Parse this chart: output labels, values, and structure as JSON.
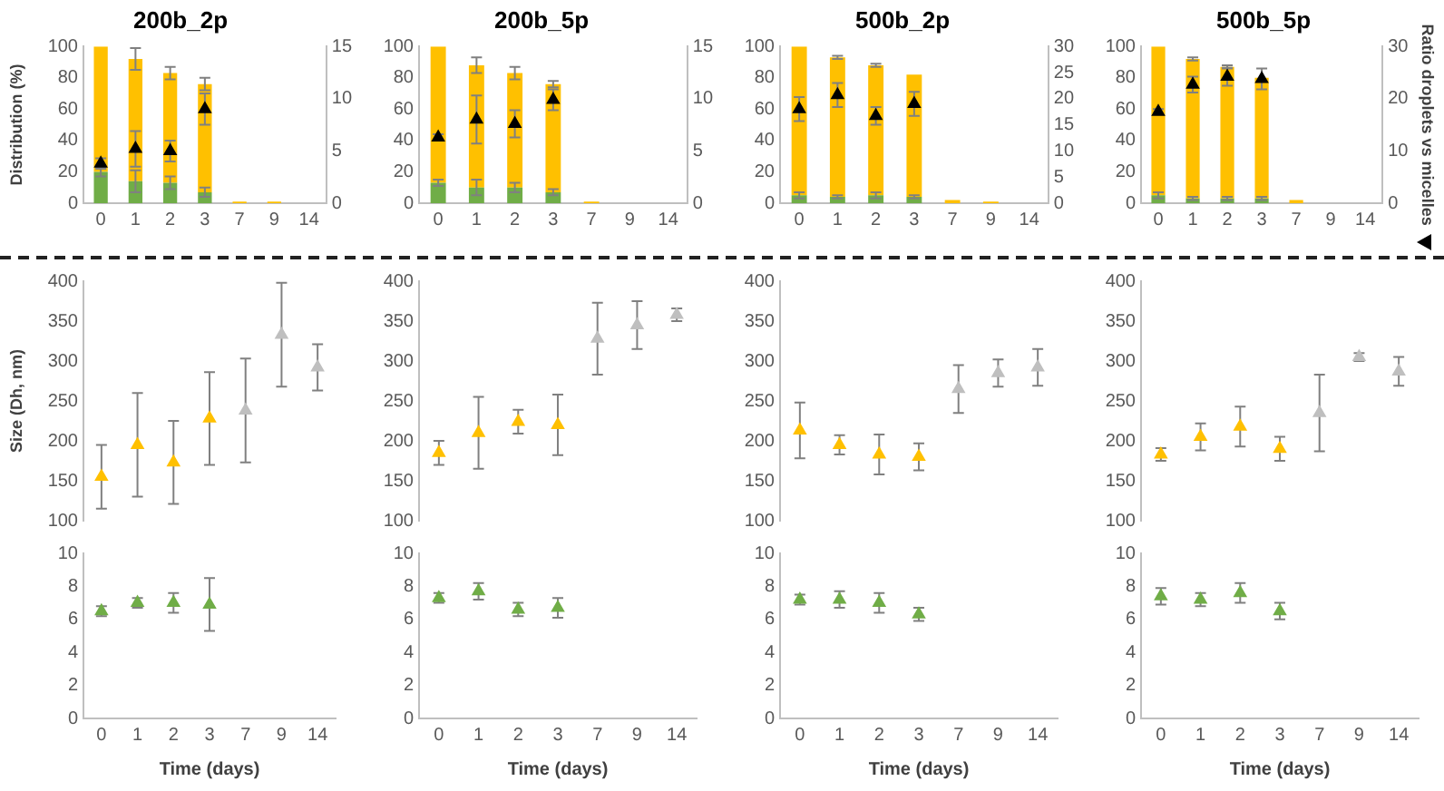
{
  "chart_data": [
    {
      "type": "bar",
      "title": "200b_2p",
      "ylabel": "Distribution (%)",
      "categories": [
        "0",
        "1",
        "2",
        "3",
        "7",
        "9",
        "14"
      ],
      "stacked": true,
      "marker": "triangle",
      "ylim": [
        0,
        100
      ],
      "yticks": [
        0,
        20,
        40,
        60,
        80,
        100
      ],
      "y2lim": [
        0,
        15
      ],
      "y2ticks": [
        0,
        5,
        10,
        15
      ],
      "series": [
        {
          "color": "#70ad47",
          "values": [
            20,
            14,
            13,
            7,
            0,
            0,
            0
          ],
          "errors": [
            3,
            7,
            4,
            3,
            null,
            null,
            null
          ]
        },
        {
          "color": "#ffc000",
          "values": [
            80,
            78,
            70,
            69,
            1,
            1,
            0
          ],
          "errors": [
            null,
            7,
            4,
            4,
            null,
            null,
            null
          ]
        },
        {
          "type": "scatter",
          "axis": "y2",
          "color": "#000000",
          "values": [
            3.8,
            5.2,
            5.0,
            9.0,
            null,
            null,
            null
          ],
          "errors": [
            0.5,
            1.7,
            1.0,
            1.5,
            null,
            null,
            null
          ]
        }
      ]
    },
    {
      "type": "bar",
      "title": "200b_5p",
      "categories": [
        "0",
        "1",
        "2",
        "3",
        "7",
        "9",
        "14"
      ],
      "stacked": true,
      "marker": "triangle",
      "ylim": [
        0,
        100
      ],
      "yticks": [
        0,
        20,
        40,
        60,
        80,
        100
      ],
      "y2lim": [
        0,
        15
      ],
      "y2ticks": [
        0,
        5,
        10,
        15
      ],
      "series": [
        {
          "color": "#70ad47",
          "values": [
            13,
            10,
            10,
            7,
            0,
            0,
            0
          ],
          "errors": [
            2,
            5,
            3,
            2,
            null,
            null,
            null
          ]
        },
        {
          "color": "#ffc000",
          "values": [
            87,
            78,
            73,
            69,
            1,
            0,
            0
          ],
          "errors": [
            null,
            5,
            4,
            2,
            null,
            null,
            null
          ]
        },
        {
          "type": "scatter",
          "axis": "y2",
          "color": "#000000",
          "values": [
            6.3,
            8.0,
            7.6,
            9.9,
            null,
            null,
            null
          ],
          "errors": [
            0.3,
            2.3,
            1.3,
            1.0,
            null,
            null,
            null
          ]
        }
      ]
    },
    {
      "type": "bar",
      "title": "500b_2p",
      "categories": [
        "0",
        "1",
        "2",
        "3",
        "7",
        "9",
        "14"
      ],
      "stacked": true,
      "marker": "triangle",
      "ylim": [
        0,
        100
      ],
      "yticks": [
        0,
        20,
        40,
        60,
        80,
        100
      ],
      "y2lim": [
        0,
        30
      ],
      "y2ticks": [
        0,
        5,
        10,
        15,
        20,
        25,
        30
      ],
      "series": [
        {
          "color": "#70ad47",
          "values": [
            5,
            4,
            5,
            4,
            0,
            0,
            0
          ],
          "errors": [
            2,
            1,
            2,
            1,
            null,
            null,
            null
          ]
        },
        {
          "color": "#ffc000",
          "values": [
            95,
            89,
            83,
            78,
            2,
            1,
            0
          ],
          "errors": [
            null,
            1,
            1,
            null,
            null,
            null,
            null
          ]
        },
        {
          "type": "scatter",
          "axis": "y2",
          "color": "#000000",
          "values": [
            18.0,
            20.7,
            16.7,
            19.0,
            null,
            null,
            null
          ],
          "errors": [
            2.3,
            2.3,
            1.7,
            2.3,
            null,
            null,
            null
          ]
        }
      ]
    },
    {
      "type": "bar",
      "title": "500b_5p",
      "y2label": "Ratio droplets vs micelles",
      "categories": [
        "0",
        "1",
        "2",
        "3",
        "7",
        "9",
        "14"
      ],
      "stacked": true,
      "marker": "triangle",
      "ylim": [
        0,
        100
      ],
      "yticks": [
        0,
        20,
        40,
        60,
        80,
        100
      ],
      "y2lim": [
        0,
        30
      ],
      "y2ticks": [
        0,
        10,
        20,
        30
      ],
      "series": [
        {
          "color": "#70ad47",
          "values": [
            5,
            3,
            3,
            3,
            0,
            0,
            0
          ],
          "errors": [
            2,
            1,
            1,
            1,
            null,
            null,
            null
          ]
        },
        {
          "color": "#ffc000",
          "values": [
            95,
            89,
            84,
            77,
            2,
            0,
            0
          ],
          "errors": [
            null,
            1,
            1,
            null,
            null,
            null,
            null
          ]
        },
        {
          "type": "scatter",
          "axis": "y2",
          "color": "#000000",
          "values": [
            17.5,
            22.7,
            24.2,
            23.8,
            null,
            null,
            null
          ],
          "errors": [
            0.5,
            1.5,
            1.7,
            2.0,
            null,
            null,
            null
          ]
        }
      ]
    },
    {
      "type": "scatter",
      "ylabel": "Size (Dh, nm)",
      "categories": [
        "0",
        "1",
        "2",
        "3",
        "7",
        "9",
        "14"
      ],
      "tick_labels": "y",
      "marker": "triangle",
      "ylim": [
        100,
        400
      ],
      "yticks": [
        100,
        150,
        200,
        250,
        300,
        350,
        400
      ],
      "series": [
        {
          "color": "#ffc000",
          "values": [
            155,
            195,
            173,
            228,
            null,
            null,
            null
          ],
          "errors": [
            40,
            65,
            52,
            58,
            null,
            null,
            null
          ]
        },
        {
          "color": "#bfbfbf",
          "values": [
            null,
            null,
            null,
            null,
            238,
            333,
            292
          ],
          "errors": [
            null,
            null,
            null,
            null,
            65,
            65,
            29
          ]
        }
      ]
    },
    {
      "type": "scatter",
      "categories": [
        "0",
        "1",
        "2",
        "3",
        "7",
        "9",
        "14"
      ],
      "tick_labels": "y",
      "marker": "triangle",
      "ylim": [
        100,
        400
      ],
      "yticks": [
        100,
        150,
        200,
        250,
        300,
        350,
        400
      ],
      "series": [
        {
          "color": "#ffc000",
          "values": [
            185,
            210,
            224,
            220,
            null,
            null,
            null
          ],
          "errors": [
            15,
            45,
            15,
            38,
            null,
            null,
            null
          ]
        },
        {
          "color": "#bfbfbf",
          "values": [
            null,
            null,
            null,
            null,
            328,
            345,
            358
          ],
          "errors": [
            null,
            null,
            null,
            null,
            45,
            30,
            8
          ]
        }
      ]
    },
    {
      "type": "scatter",
      "categories": [
        "0",
        "1",
        "2",
        "3",
        "7",
        "9",
        "14"
      ],
      "tick_labels": "y",
      "marker": "triangle",
      "ylim": [
        100,
        400
      ],
      "yticks": [
        100,
        150,
        200,
        250,
        300,
        350,
        400
      ],
      "series": [
        {
          "color": "#ffc000",
          "values": [
            213,
            195,
            183,
            180,
            null,
            null,
            null
          ],
          "errors": [
            35,
            12,
            25,
            17,
            null,
            null,
            null
          ]
        },
        {
          "color": "#bfbfbf",
          "values": [
            null,
            null,
            null,
            null,
            265,
            285,
            292
          ],
          "errors": [
            null,
            null,
            null,
            null,
            30,
            17,
            23
          ]
        }
      ]
    },
    {
      "type": "scatter",
      "categories": [
        "0",
        "1",
        "2",
        "3",
        "7",
        "9",
        "14"
      ],
      "tick_labels": "y",
      "marker": "triangle",
      "ylim": [
        100,
        400
      ],
      "yticks": [
        100,
        150,
        200,
        250,
        300,
        350,
        400
      ],
      "series": [
        {
          "color": "#ffc000",
          "values": [
            183,
            205,
            218,
            190,
            null,
            null,
            null
          ],
          "errors": [
            8,
            17,
            25,
            15,
            null,
            null,
            null
          ]
        },
        {
          "color": "#bfbfbf",
          "values": [
            null,
            null,
            null,
            null,
            235,
            305,
            287
          ],
          "errors": [
            null,
            null,
            null,
            null,
            48,
            5,
            18
          ]
        }
      ]
    },
    {
      "type": "scatter",
      "xlabel": "Time (days)",
      "categories": [
        "0",
        "1",
        "2",
        "3",
        "7",
        "9",
        "14"
      ],
      "marker": "triangle",
      "ylim": [
        0,
        10
      ],
      "yticks": [
        0,
        2,
        4,
        6,
        8,
        10
      ],
      "series": [
        {
          "color": "#70ad47",
          "values": [
            6.5,
            7.0,
            7.0,
            6.9,
            null,
            null,
            null
          ],
          "errors": [
            0.3,
            0.3,
            0.6,
            1.6,
            null,
            null,
            null
          ]
        }
      ]
    },
    {
      "type": "scatter",
      "xlabel": "Time (days)",
      "categories": [
        "0",
        "1",
        "2",
        "3",
        "7",
        "9",
        "14"
      ],
      "marker": "triangle",
      "ylim": [
        0,
        10
      ],
      "yticks": [
        0,
        2,
        4,
        6,
        8,
        10
      ],
      "series": [
        {
          "color": "#70ad47",
          "values": [
            7.3,
            7.7,
            6.6,
            6.7,
            null,
            null,
            null
          ],
          "errors": [
            0.3,
            0.5,
            0.4,
            0.6,
            null,
            null,
            null
          ]
        }
      ]
    },
    {
      "type": "scatter",
      "xlabel": "Time (days)",
      "categories": [
        "0",
        "1",
        "2",
        "3",
        "7",
        "9",
        "14"
      ],
      "marker": "triangle",
      "ylim": [
        0,
        10
      ],
      "yticks": [
        0,
        2,
        4,
        6,
        8,
        10
      ],
      "series": [
        {
          "color": "#70ad47",
          "values": [
            7.2,
            7.2,
            7.0,
            6.3,
            null,
            null,
            null
          ],
          "errors": [
            0.3,
            0.5,
            0.6,
            0.4,
            null,
            null,
            null
          ]
        }
      ]
    },
    {
      "type": "scatter",
      "xlabel": "Time (days)",
      "categories": [
        "0",
        "1",
        "2",
        "3",
        "7",
        "9",
        "14"
      ],
      "marker": "triangle",
      "ylim": [
        0,
        10
      ],
      "yticks": [
        0,
        2,
        4,
        6,
        8,
        10
      ],
      "series": [
        {
          "color": "#70ad47",
          "values": [
            7.4,
            7.2,
            7.6,
            6.5,
            null,
            null,
            null
          ],
          "errors": [
            0.5,
            0.4,
            0.6,
            0.5,
            null,
            null,
            null
          ]
        }
      ]
    }
  ]
}
